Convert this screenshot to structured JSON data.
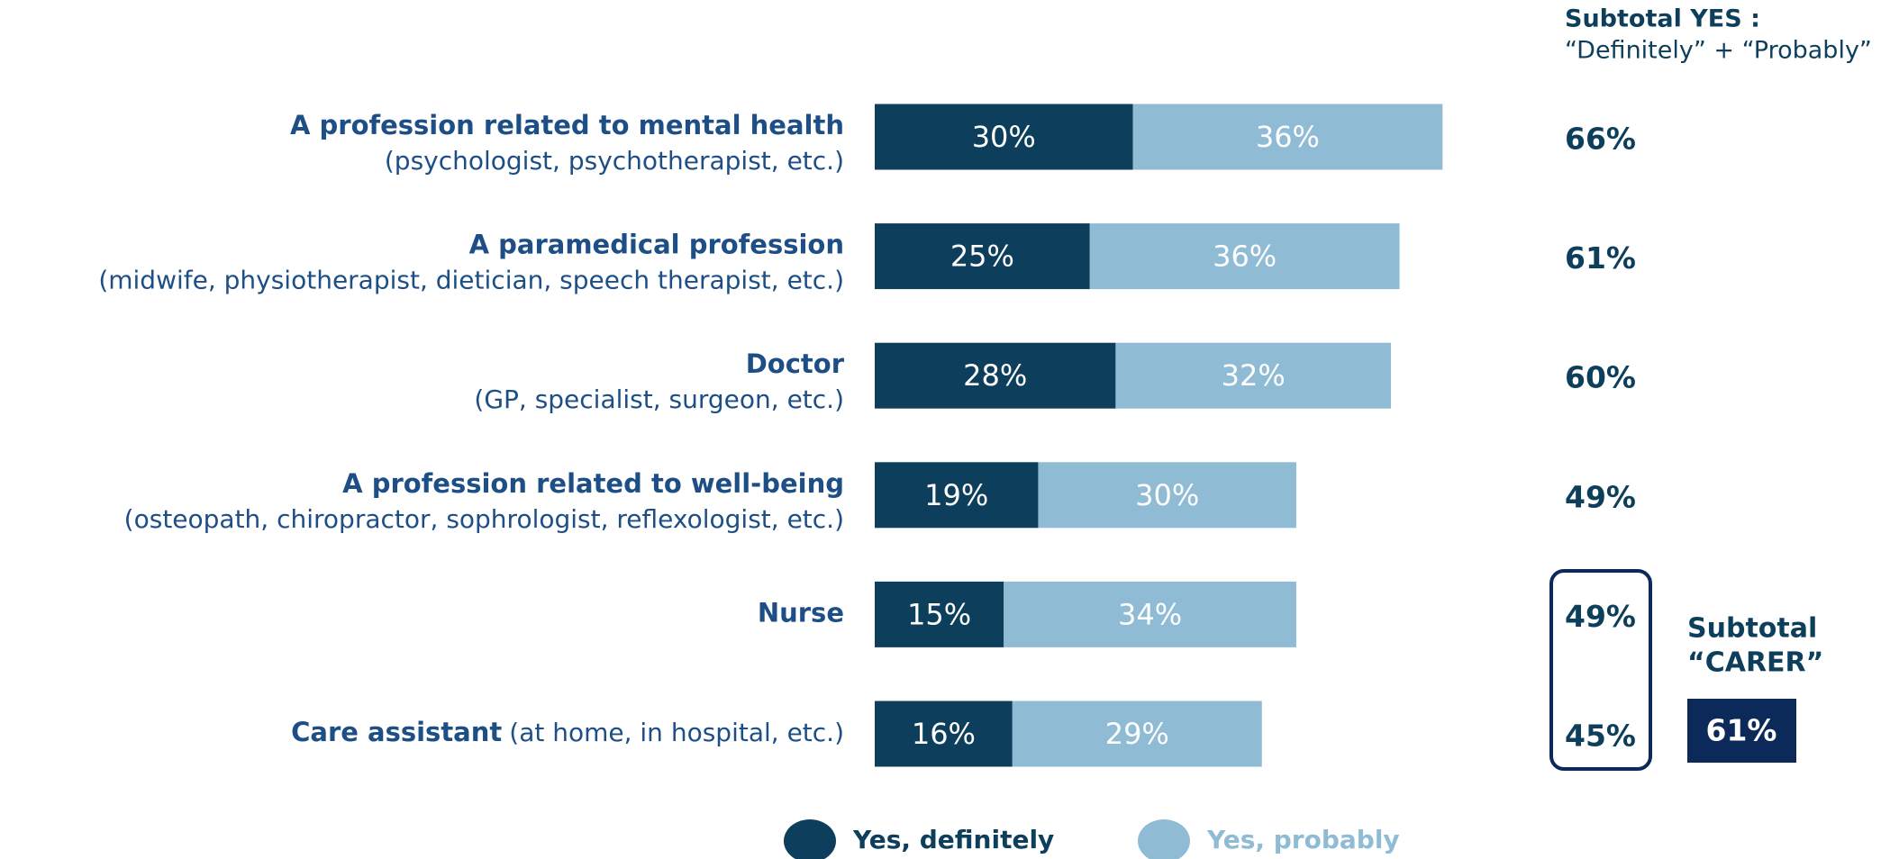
{
  "chart_data": {
    "type": "stacked-bar-horizontal",
    "categories": [
      "A profession related to mental health",
      "A paramedical profession",
      "Doctor",
      "A profession related to well-being",
      "Nurse",
      "Care assistant"
    ],
    "category_notes": [
      "(psychologist, psychotherapist, etc.)",
      "(midwife, physiotherapist, dietician, speech therapist, etc.)",
      "(GP, specialist, surgeon, etc.)",
      "(osteopath, chiropractor, sophrologist, reflexologist, etc.)",
      null,
      "(at home, in hospital, etc.)"
    ],
    "series": [
      {
        "name": "Yes, definitely",
        "color": "#0d3f5c",
        "values": [
          30,
          25,
          28,
          19,
          15,
          16
        ],
        "value_labels": [
          "30%",
          "25%",
          "28%",
          "19%",
          "15%",
          "16%"
        ]
      },
      {
        "name": "Yes, probably",
        "color": "#8fbcd4",
        "values": [
          36,
          36,
          32,
          30,
          34,
          29
        ],
        "value_labels": [
          "36%",
          "36%",
          "32%",
          "30%",
          "34%",
          "29%"
        ]
      }
    ],
    "subtotal_title": "Subtotal YES :",
    "subtotal_subtitle": "“Definitely” + “Probably”",
    "subtotals": {
      "values": [
        66,
        61,
        60,
        49,
        49,
        45
      ],
      "value_labels": [
        "66%",
        "61%",
        "60%",
        "49%",
        "49%",
        "45%"
      ]
    },
    "carer_title": "Subtotal",
    "carer_subtitle": "“CARER”",
    "carer_subtotal": {
      "value": 61,
      "label": "61%"
    }
  }
}
